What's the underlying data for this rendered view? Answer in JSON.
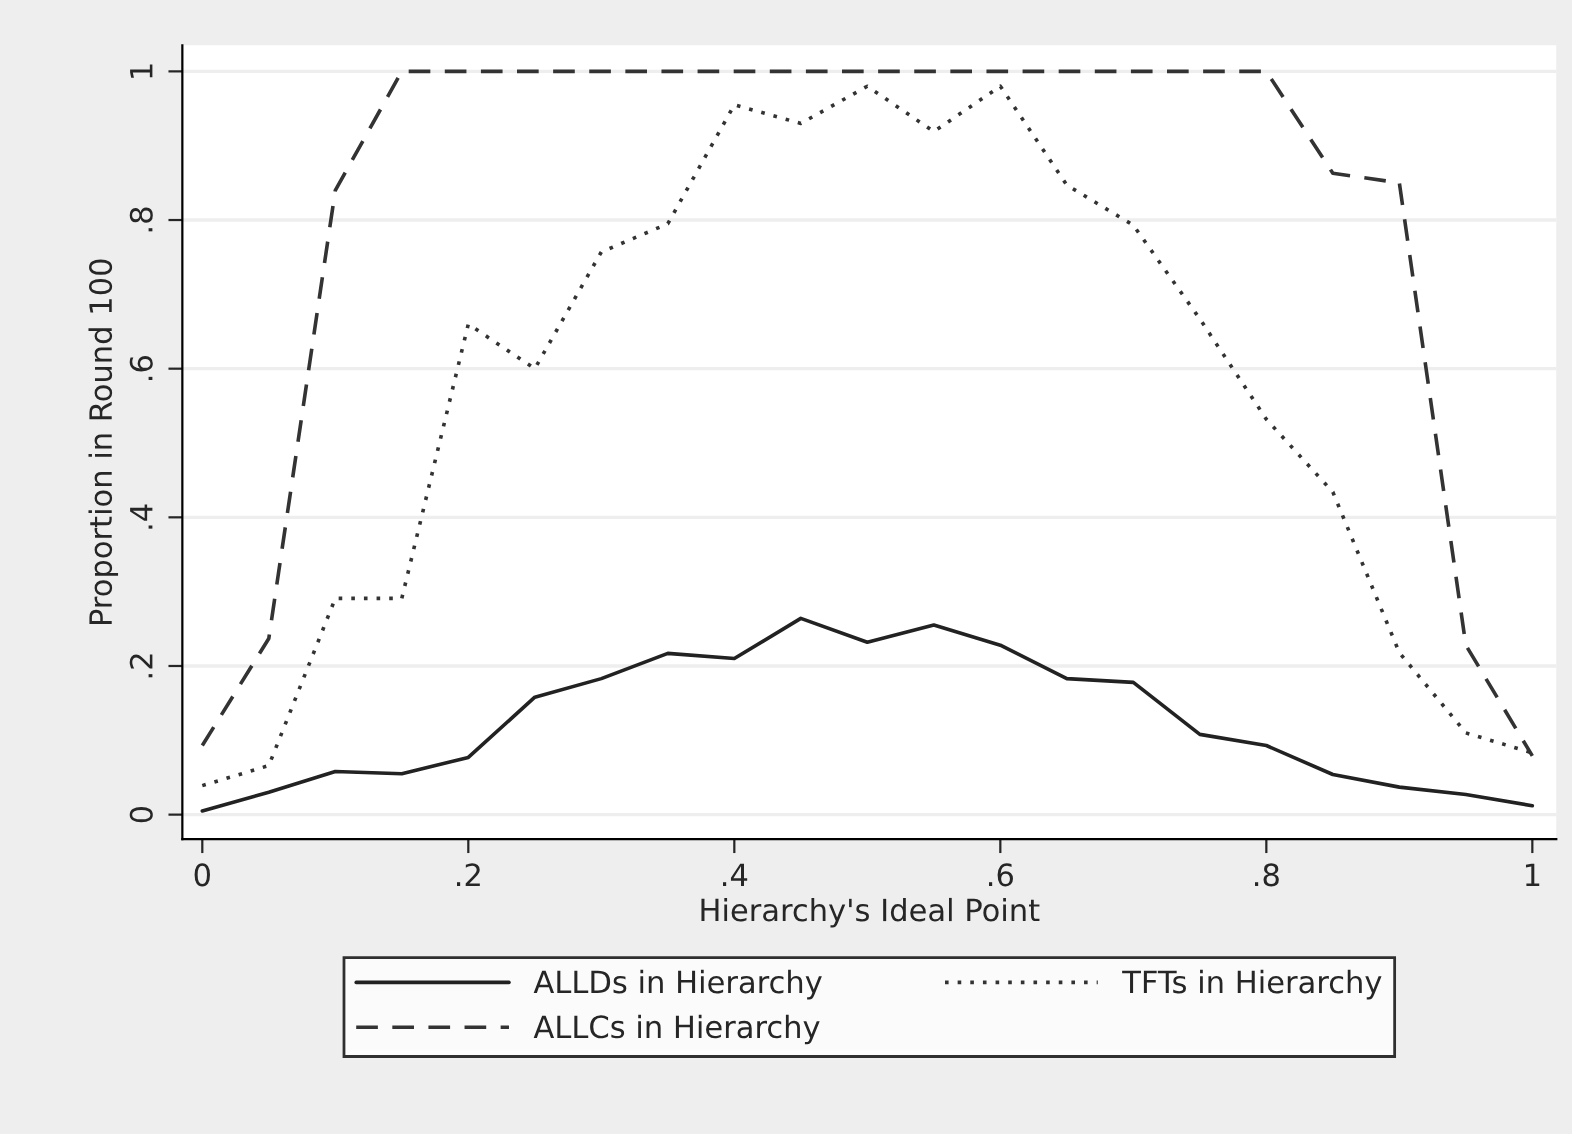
{
  "chart_data": {
    "type": "line",
    "xlabel": "Hierarchy's Ideal Point",
    "ylabel": "Proportion in Round 100",
    "x": [
      0,
      0.05,
      0.1,
      0.15,
      0.2,
      0.25,
      0.3,
      0.35,
      0.4,
      0.45,
      0.5,
      0.55,
      0.6,
      0.65,
      0.7,
      0.75,
      0.8,
      0.85,
      0.9,
      0.95,
      1
    ],
    "series": [
      {
        "name": "ALLDs in Hierarchy",
        "color": "#222222",
        "line_style": "solid",
        "values": [
          0.005,
          0.03,
          0.058,
          0.055,
          0.077,
          0.158,
          0.183,
          0.217,
          0.21,
          0.264,
          0.232,
          0.255,
          0.228,
          0.183,
          0.178,
          0.108,
          0.093,
          0.054,
          0.037,
          0.027,
          0.012
        ]
      },
      {
        "name": "ALLCs in Hierarchy",
        "color": "#333333",
        "line_style": "dashed",
        "values": [
          0.093,
          0.237,
          0.84,
          1,
          1,
          1,
          1,
          1,
          1,
          1,
          1,
          1,
          1,
          1,
          1,
          1,
          1,
          0.863,
          0.85,
          0.228,
          0.079
        ]
      },
      {
        "name": "TFTs in Hierarchy",
        "color": "#333333",
        "line_style": "dotted",
        "values": [
          0.039,
          0.066,
          0.291,
          0.291,
          0.66,
          0.6,
          0.757,
          0.795,
          0.955,
          0.93,
          0.98,
          0.919,
          0.98,
          0.847,
          0.793,
          0.667,
          0.532,
          0.434,
          0.218,
          0.11,
          0.083
        ]
      }
    ],
    "xlim": [
      -0.015,
      1.018
    ],
    "ylim": [
      -0.033,
      1.035
    ],
    "xticks": [
      0,
      {
        "value": 0.2,
        "label": ".2"
      },
      {
        "value": 0.4,
        "label": ".4"
      },
      {
        "value": 0.6,
        "label": ".6"
      },
      {
        "value": 0.8,
        "label": ".8"
      },
      1
    ],
    "yticks": [
      0,
      {
        "value": 0.2,
        "label": ".2"
      },
      {
        "value": 0.4,
        "label": ".4"
      },
      {
        "value": 0.6,
        "label": ".6"
      },
      {
        "value": 0.8,
        "label": ".8"
      },
      1
    ],
    "grid": "y",
    "legend": "bottom"
  }
}
